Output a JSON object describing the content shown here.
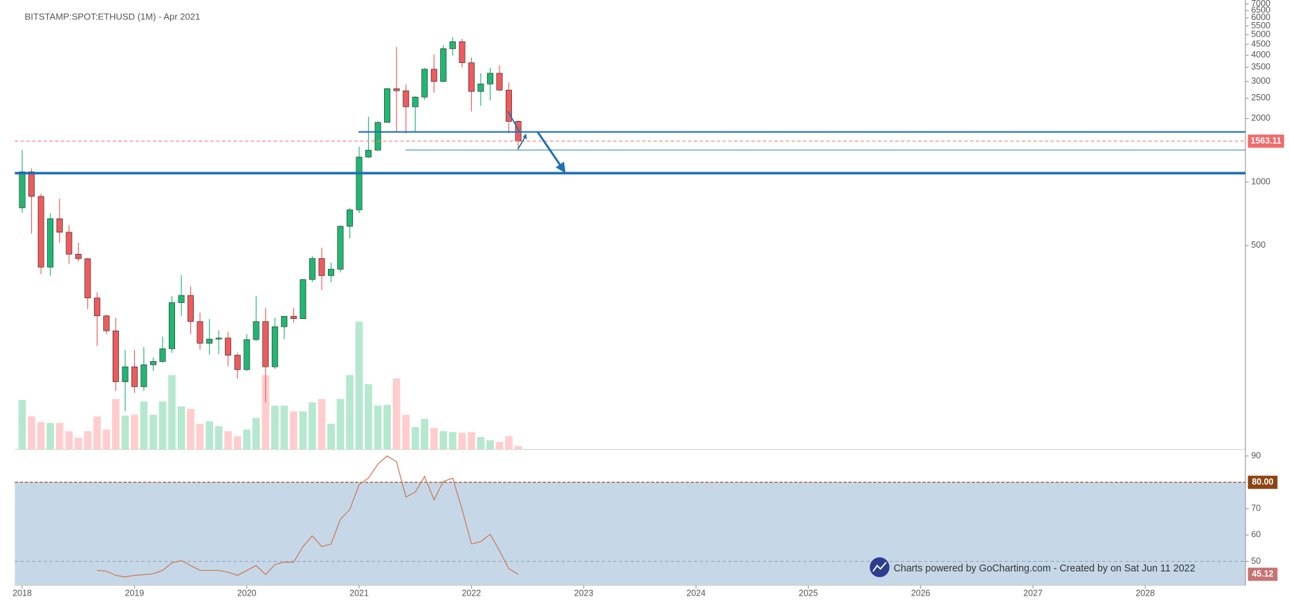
{
  "chart_data": {
    "type": "candlestick",
    "title": "BITSTAMP:SPOT:ETHUSD (1M) - Apr 2021",
    "watermark": "Charts powered by GoCharting.com - Created by  on Sat Jun 11 2022",
    "log_scale": true,
    "up_color": "#1fb872",
    "down_color": "#ef5b5b",
    "x": [
      2018,
      2018.083,
      2018.167,
      2018.25,
      2018.333,
      2018.417,
      2018.5,
      2018.583,
      2018.667,
      2018.75,
      2018.833,
      2018.917,
      2019,
      2019.083,
      2019.167,
      2019.25,
      2019.333,
      2019.417,
      2019.5,
      2019.583,
      2019.667,
      2019.75,
      2019.833,
      2019.917,
      2020,
      2020.083,
      2020.167,
      2020.25,
      2020.333,
      2020.417,
      2020.5,
      2020.583,
      2020.667,
      2020.75,
      2020.833,
      2020.917,
      2021,
      2021.083,
      2021.167,
      2021.25,
      2021.333,
      2021.417,
      2021.5,
      2021.583,
      2021.667,
      2021.75,
      2021.833,
      2021.917,
      2022,
      2022.083,
      2022.167,
      2022.25,
      2022.333,
      2022.417
    ],
    "open": [
      755,
      1118,
      855,
      395,
      670,
      578,
      455,
      433,
      282,
      232,
      197,
      113,
      133,
      107,
      136,
      141,
      162,
      268,
      290,
      218,
      172,
      180,
      182,
      151,
      129,
      179,
      218,
      133,
      206,
      231,
      225,
      345,
      434,
      360,
      386,
      617,
      738,
      1314,
      1416,
      1918,
      2773,
      2710,
      2275,
      2530,
      3430,
      3000,
      4290,
      4630,
      3680,
      2690,
      2920,
      3280,
      2730,
      1940
    ],
    "high": [
      1420,
      1160,
      880,
      710,
      835,
      625,
      515,
      437,
      300,
      235,
      227,
      160,
      160,
      165,
      147,
      185,
      288,
      362,
      320,
      240,
      224,
      198,
      195,
      155,
      190,
      288,
      252,
      227,
      227,
      253,
      347,
      445,
      488,
      415,
      623,
      755,
      1470,
      2040,
      1940,
      2800,
      4370,
      2900,
      2550,
      3470,
      4030,
      4460,
      4870,
      4780,
      3900,
      3280,
      3480,
      3580,
      2970,
      1970
    ],
    "low": [
      715,
      570,
      366,
      360,
      515,
      410,
      420,
      250,
      167,
      190,
      102,
      82,
      100,
      102,
      127,
      139,
      155,
      232,
      190,
      160,
      152,
      153,
      134,
      117,
      127,
      176,
      90,
      130,
      180,
      215,
      224,
      335,
      308,
      335,
      373,
      540,
      712,
      1300,
      1420,
      1930,
      1730,
      1700,
      1720,
      2450,
      2650,
      2970,
      3980,
      3500,
      2160,
      2300,
      2440,
      2700,
      1700,
      1420
    ],
    "close": [
      1118,
      855,
      395,
      670,
      578,
      455,
      433,
      282,
      232,
      197,
      113,
      133,
      107,
      136,
      141,
      162,
      268,
      290,
      218,
      172,
      180,
      182,
      151,
      129,
      179,
      218,
      133,
      206,
      231,
      225,
      345,
      434,
      360,
      386,
      617,
      738,
      1314,
      1416,
      1918,
      2773,
      2710,
      2275,
      2530,
      3430,
      3000,
      4290,
      4630,
      3680,
      2690,
      2920,
      3280,
      2730,
      1940,
      1563.11
    ],
    "volume": [
      60,
      40,
      33,
      32,
      32,
      22,
      14,
      22,
      40,
      24,
      61,
      41,
      42,
      58,
      42,
      58,
      90,
      52,
      49,
      31,
      34,
      28,
      22,
      16,
      24,
      38,
      90,
      53,
      53,
      46,
      46,
      57,
      61,
      31,
      61,
      90,
      155,
      79,
      53,
      54,
      86,
      42,
      27,
      37,
      26,
      22,
      21,
      20,
      21,
      15,
      11,
      9,
      16,
      4
    ],
    "ylim": [
      54,
      7300
    ],
    "yticks": [
      500,
      1000,
      2000,
      2500,
      3000,
      3500,
      4000,
      4500,
      5000,
      5500,
      6000,
      6500,
      7000
    ],
    "xlim": [
      2017.934,
      2028.892
    ],
    "xticks": [
      2018,
      2019,
      2020,
      2021,
      2022,
      2023,
      2024,
      2025,
      2026,
      2027,
      2028
    ],
    "rsi": {
      "color": "#c97b5a",
      "values": [
        null,
        null,
        null,
        null,
        null,
        null,
        null,
        null,
        46.6,
        46.3,
        44.7,
        44.1,
        44.7,
        45,
        45.3,
        46.6,
        49.4,
        50.3,
        48.4,
        46.6,
        46.6,
        46.6,
        45.9,
        44.7,
        46.6,
        48.4,
        45,
        48.8,
        49.7,
        49.7,
        55.6,
        59.7,
        55.6,
        56.6,
        65.9,
        69.7,
        79.1,
        81.6,
        86.9,
        90,
        87.8,
        74.4,
        76.3,
        82.2,
        73.4,
        80.3,
        81.6,
        69.7,
        56.6,
        57.5,
        60.3,
        54.1,
        47.2,
        45.12
      ],
      "ylim": [
        40.9,
        92.5
      ],
      "yticks": [
        50,
        60,
        70,
        90
      ],
      "level": {
        "value": 80,
        "label": "80.00"
      },
      "midline": 50
    }
  }
}
